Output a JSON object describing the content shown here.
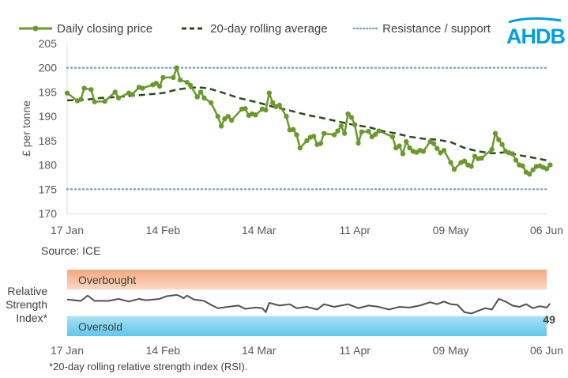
{
  "chart_data": [
    {
      "type": "line",
      "title": "",
      "xlabel": "",
      "ylabel": "£ per tonne",
      "ylim": [
        170,
        205
      ],
      "yticks": [
        170,
        175,
        180,
        185,
        190,
        195,
        200,
        205
      ],
      "xlim": [
        0,
        140
      ],
      "xticks": [
        {
          "label": "17 Jan",
          "x": 0
        },
        {
          "label": "14 Feb",
          "x": 28
        },
        {
          "label": "14 Mar",
          "x": 56
        },
        {
          "label": "11 Apr",
          "x": 84
        },
        {
          "label": "09 May",
          "x": 112
        },
        {
          "label": "06 Jun",
          "x": 140
        }
      ],
      "legend_position": "top",
      "series": [
        {
          "name": "Daily closing price",
          "color": "#6a9a2e",
          "style": "line-markers",
          "points": [
            [
              0,
              194.8
            ],
            [
              3,
              193.2
            ],
            [
              4,
              193.5
            ],
            [
              5,
              195.8
            ],
            [
              7,
              195.5
            ],
            [
              8,
              193.0
            ],
            [
              11,
              193.1
            ],
            [
              14,
              195.0
            ],
            [
              15,
              193.8
            ],
            [
              18,
              194.8
            ],
            [
              19,
              194.5
            ],
            [
              21,
              196.0
            ],
            [
              22,
              195.8
            ],
            [
              25,
              196.5
            ],
            [
              26,
              196.8
            ],
            [
              27,
              196.2
            ],
            [
              28,
              198.0
            ],
            [
              31,
              198.0
            ],
            [
              32,
              200.0
            ],
            [
              33,
              197.5
            ],
            [
              35,
              197.0
            ],
            [
              36,
              196.4
            ],
            [
              38,
              194.0
            ],
            [
              39,
              195.0
            ],
            [
              40,
              193.8
            ],
            [
              42,
              192.8
            ],
            [
              44,
              190.0
            ],
            [
              45,
              188.0
            ],
            [
              46,
              189.5
            ],
            [
              47,
              190.0
            ],
            [
              48,
              189.2
            ],
            [
              51,
              191.5
            ],
            [
              52,
              191.6
            ],
            [
              53,
              190.2
            ],
            [
              54,
              190.5
            ],
            [
              55,
              190.3
            ],
            [
              57,
              191.5
            ],
            [
              58,
              191.3
            ],
            [
              59,
              194.8
            ],
            [
              60,
              192.8
            ],
            [
              61,
              192.0
            ],
            [
              62,
              192.3
            ],
            [
              64,
              190.0
            ],
            [
              65,
              187.2
            ],
            [
              66,
              187.3
            ],
            [
              67,
              186.2
            ],
            [
              68,
              183.5
            ],
            [
              70,
              185.0
            ],
            [
              71,
              185.7
            ],
            [
              72,
              185.9
            ],
            [
              73,
              184.2
            ],
            [
              74,
              184.4
            ],
            [
              75,
              186.5
            ],
            [
              78,
              186.2
            ],
            [
              79,
              187.0
            ],
            [
              80,
              188.0
            ],
            [
              81,
              186.5
            ],
            [
              82,
              190.5
            ],
            [
              83,
              189.8
            ],
            [
              84,
              188.3
            ],
            [
              85,
              184.5
            ],
            [
              86,
              186.8
            ],
            [
              88,
              186.9
            ],
            [
              89,
              185.8
            ],
            [
              90,
              186.3
            ],
            [
              91,
              187.0
            ],
            [
              95,
              185.8
            ],
            [
              96,
              183.5
            ],
            [
              97,
              183.9
            ],
            [
              98,
              182.3
            ],
            [
              99,
              184.8
            ],
            [
              100,
              183.5
            ],
            [
              101,
              182.8
            ],
            [
              102,
              182.6
            ],
            [
              103,
              183.0
            ],
            [
              104,
              182.8
            ],
            [
              106,
              184.8
            ],
            [
              107,
              184.4
            ],
            [
              108,
              183.4
            ],
            [
              109,
              182.5
            ],
            [
              110,
              183.0
            ],
            [
              112,
              180.5
            ],
            [
              113,
              179.1
            ],
            [
              115,
              180.5
            ],
            [
              116,
              180.8
            ],
            [
              117,
              180.0
            ],
            [
              118,
              179.7
            ],
            [
              119,
              181.8
            ],
            [
              120,
              181.3
            ],
            [
              121,
              181.4
            ],
            [
              124,
              183.2
            ],
            [
              125,
              186.5
            ],
            [
              126,
              185.2
            ],
            [
              127,
              184.2
            ],
            [
              128,
              182.8
            ],
            [
              129,
              182.5
            ],
            [
              130,
              182.3
            ],
            [
              131,
              181.0
            ],
            [
              132,
              180.0
            ],
            [
              133,
              179.8
            ],
            [
              134,
              178.5
            ],
            [
              135,
              178.1
            ],
            [
              136,
              179.0
            ],
            [
              137,
              179.7
            ],
            [
              138,
              179.8
            ],
            [
              139,
              179.5
            ],
            [
              140,
              179.2
            ],
            [
              141,
              180.0
            ]
          ]
        },
        {
          "name": "20-day rolling average",
          "color": "#2d4a1e",
          "style": "dashed",
          "points": [
            [
              0,
              193.3
            ],
            [
              5,
              193.4
            ],
            [
              10,
              193.8
            ],
            [
              15,
              194.0
            ],
            [
              20,
              194.3
            ],
            [
              25,
              194.6
            ],
            [
              28,
              194.8
            ],
            [
              32,
              195.5
            ],
            [
              35,
              195.8
            ],
            [
              38,
              196.0
            ],
            [
              41,
              195.8
            ],
            [
              44,
              195.2
            ],
            [
              47,
              194.5
            ],
            [
              50,
              193.8
            ],
            [
              53,
              193.3
            ],
            [
              56,
              192.8
            ],
            [
              60,
              192.0
            ],
            [
              65,
              191.2
            ],
            [
              70,
              190.3
            ],
            [
              75,
              189.6
            ],
            [
              80,
              188.8
            ],
            [
              84,
              188.2
            ],
            [
              88,
              187.8
            ],
            [
              92,
              187.0
            ],
            [
              96,
              186.5
            ],
            [
              100,
              185.8
            ],
            [
              104,
              185.4
            ],
            [
              108,
              185.2
            ],
            [
              112,
              184.7
            ],
            [
              116,
              183.5
            ],
            [
              120,
              182.8
            ],
            [
              124,
              182.4
            ],
            [
              128,
              182.6
            ],
            [
              132,
              182.0
            ],
            [
              136,
              181.5
            ],
            [
              141,
              180.8
            ]
          ]
        },
        {
          "name": "Resistance / support",
          "color": "#8aa8bd",
          "style": "dotted",
          "levels": [
            200,
            175
          ]
        }
      ]
    },
    {
      "type": "line",
      "title": "Relative Strength Index*",
      "bands": {
        "overbought": {
          "label": "Overbought",
          "range": [
            70,
            100
          ]
        },
        "oversold": {
          "label": "Oversold",
          "range": [
            0,
            30
          ]
        }
      },
      "ylim": [
        0,
        100
      ],
      "xlim": [
        0,
        140
      ],
      "xticks": [
        {
          "label": "17 Jan",
          "x": 0
        },
        {
          "label": "14 Feb",
          "x": 28
        },
        {
          "label": "14 Mar",
          "x": 56
        },
        {
          "label": "11 Apr",
          "x": 84
        },
        {
          "label": "09 May",
          "x": 112
        },
        {
          "label": "06 Jun",
          "x": 140
        }
      ],
      "series": [
        {
          "name": "20-day rolling RSI",
          "color": "#505050",
          "points": [
            [
              0,
              55.0
            ],
            [
              4,
              53.0
            ],
            [
              6,
              61.0
            ],
            [
              8,
              53.0
            ],
            [
              12,
              53.0
            ],
            [
              15,
              56.0
            ],
            [
              18,
              52.0
            ],
            [
              21,
              56.0
            ],
            [
              23,
              54.0
            ],
            [
              27,
              56.0
            ],
            [
              29,
              60.0
            ],
            [
              32,
              62.0
            ],
            [
              33,
              60.0
            ],
            [
              34,
              57.0
            ],
            [
              35,
              61.0
            ],
            [
              37,
              55.0
            ],
            [
              40,
              53.0
            ],
            [
              42,
              47.0
            ],
            [
              44,
              42.0
            ],
            [
              47,
              44.0
            ],
            [
              50,
              46.0
            ],
            [
              52,
              41.0
            ],
            [
              55,
              43.0
            ],
            [
              57,
              42.0
            ],
            [
              58,
              36.0
            ],
            [
              59,
              50.0
            ],
            [
              62,
              46.0
            ],
            [
              65,
              48.0
            ],
            [
              67,
              42.0
            ],
            [
              70,
              44.0
            ],
            [
              73,
              40.0
            ],
            [
              75,
              48.0
            ],
            [
              78,
              44.0
            ],
            [
              82,
              48.0
            ],
            [
              85,
              42.0
            ],
            [
              88,
              46.0
            ],
            [
              91,
              44.0
            ],
            [
              94,
              40.0
            ],
            [
              97,
              44.0
            ],
            [
              100,
              43.0
            ],
            [
              103,
              46.0
            ],
            [
              106,
              51.0
            ],
            [
              108,
              48.0
            ],
            [
              110,
              52.0
            ],
            [
              112,
              48.0
            ],
            [
              114,
              47.0
            ],
            [
              116,
              36.0
            ],
            [
              118,
              34.0
            ],
            [
              120,
              38.0
            ],
            [
              122,
              42.0
            ],
            [
              124,
              40.0
            ],
            [
              126,
              56.0
            ],
            [
              128,
              52.0
            ],
            [
              130,
              46.0
            ],
            [
              132,
              44.0
            ],
            [
              134,
              48.0
            ],
            [
              136,
              42.0
            ],
            [
              138,
              45.0
            ],
            [
              140,
              43.0
            ],
            [
              141,
              49.0
            ]
          ],
          "last_value_label": "49"
        }
      ]
    }
  ],
  "legend": [
    {
      "label": "Daily closing price",
      "style": "line-marker",
      "color": "#6a9a2e"
    },
    {
      "label": "20-day rolling average",
      "style": "dashed",
      "color": "#2d4a1e"
    },
    {
      "label": "Resistance / support",
      "style": "dotted",
      "color": "#8aa8bd"
    }
  ],
  "logo_text": "AHDB",
  "source": "Source: ICE",
  "rsi_label": [
    "Relative",
    "Strength",
    "Index*"
  ],
  "footnote": "*20-day rolling relative strength index (RSI)."
}
